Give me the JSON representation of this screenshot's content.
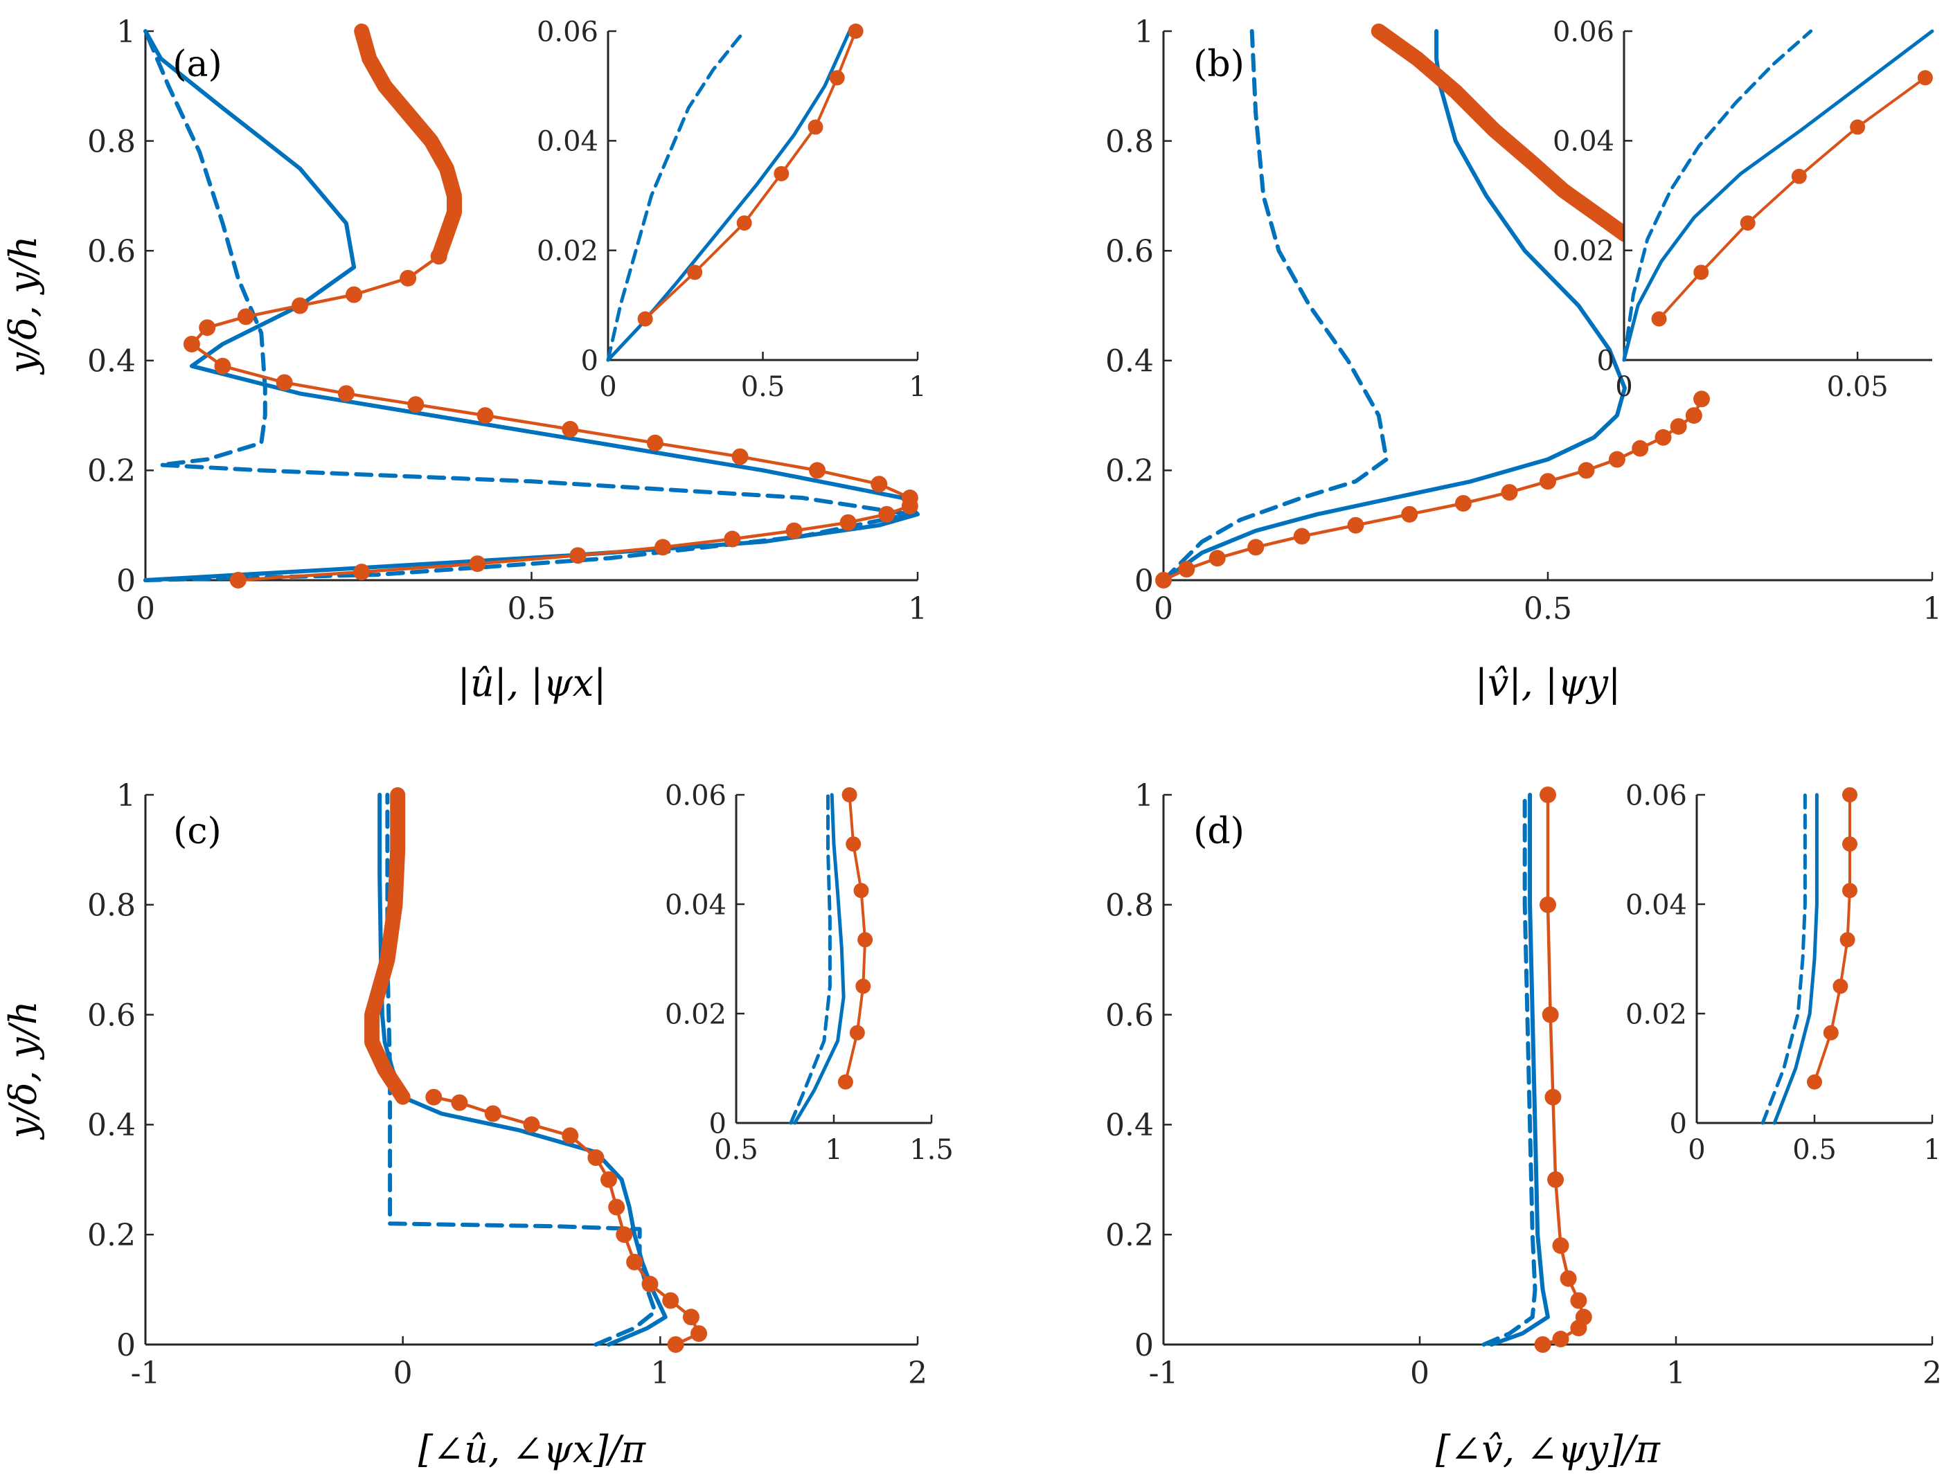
{
  "colors": {
    "blue": "#0072BD",
    "orange": "#D95319",
    "axis": "#262626"
  },
  "chart_data": [
    {
      "panel": "a",
      "label": "(a)",
      "type": "line",
      "xlabel": "|û|, |ψx|",
      "ylabel": "y/δ, y/h",
      "xlim": [
        0,
        1
      ],
      "ylim": [
        0,
        1
      ],
      "xticks": [
        "0",
        "0.5",
        "1"
      ],
      "yticks": [
        "0",
        "0.2",
        "0.4",
        "0.6",
        "0.8",
        "1"
      ],
      "series": [
        {
          "name": "solid",
          "style": "solid",
          "color": "blue",
          "x": [
            0,
            0.25,
            0.55,
            0.8,
            0.95,
            1.0,
            0.98,
            0.8,
            0.5,
            0.2,
            0.06,
            0.1,
            0.2,
            0.27,
            0.26,
            0.2,
            0.1,
            0.02,
            0
          ],
          "y": [
            0,
            0.02,
            0.045,
            0.07,
            0.1,
            0.12,
            0.15,
            0.2,
            0.27,
            0.34,
            0.39,
            0.43,
            0.5,
            0.57,
            0.65,
            0.75,
            0.86,
            0.95,
            1.0
          ]
        },
        {
          "name": "dashed",
          "style": "dashed",
          "color": "blue",
          "x": [
            0,
            0.3,
            0.6,
            0.85,
            0.99,
            0.85,
            0.5,
            0.15,
            0.02,
            0.08,
            0.15,
            0.155,
            0.155,
            0.15,
            0.12,
            0.1,
            0.07,
            0.03,
            0
          ],
          "y": [
            0,
            0.01,
            0.04,
            0.08,
            0.12,
            0.15,
            0.18,
            0.2,
            0.21,
            0.22,
            0.25,
            0.3,
            0.35,
            0.45,
            0.55,
            0.65,
            0.78,
            0.9,
            1.0
          ]
        },
        {
          "name": "line-dots",
          "style": "marker",
          "color": "orange",
          "x": [
            0.12,
            0.28,
            0.43,
            0.56,
            0.67,
            0.76,
            0.84,
            0.91,
            0.96,
            0.99,
            0.99,
            0.95,
            0.87,
            0.77,
            0.66,
            0.55,
            0.44,
            0.35,
            0.26,
            0.18,
            0.1,
            0.06,
            0.08,
            0.13,
            0.2,
            0.27,
            0.34,
            0.38
          ],
          "y": [
            0,
            0.015,
            0.03,
            0.045,
            0.06,
            0.075,
            0.09,
            0.105,
            0.12,
            0.135,
            0.15,
            0.175,
            0.2,
            0.225,
            0.25,
            0.275,
            0.3,
            0.32,
            0.34,
            0.36,
            0.39,
            0.43,
            0.46,
            0.48,
            0.5,
            0.52,
            0.55,
            0.59
          ]
        },
        {
          "name": "thick-upper",
          "style": "thick",
          "color": "orange",
          "x": [
            0.38,
            0.39,
            0.4,
            0.4,
            0.39,
            0.37,
            0.34,
            0.31,
            0.29,
            0.28
          ],
          "y": [
            0.59,
            0.63,
            0.67,
            0.7,
            0.75,
            0.8,
            0.85,
            0.9,
            0.95,
            1.0
          ]
        }
      ],
      "inset": {
        "xlim": [
          0,
          1
        ],
        "ylim": [
          0,
          0.06
        ],
        "xticks": [
          "0",
          "0.5",
          "1"
        ],
        "yticks": [
          "0",
          "0.02",
          "0.04",
          "0.06"
        ],
        "series": [
          {
            "style": "solid",
            "color": "blue",
            "x": [
              0,
              0.1,
              0.22,
              0.35,
              0.48,
              0.6,
              0.7,
              0.78
            ],
            "y": [
              0,
              0.006,
              0.014,
              0.023,
              0.032,
              0.041,
              0.05,
              0.06
            ]
          },
          {
            "style": "dashed",
            "color": "blue",
            "x": [
              0,
              0.04,
              0.09,
              0.14,
              0.2,
              0.26,
              0.34,
              0.44
            ],
            "y": [
              0,
              0.01,
              0.02,
              0.03,
              0.038,
              0.046,
              0.053,
              0.06
            ]
          },
          {
            "style": "marker",
            "color": "orange",
            "x": [
              0.12,
              0.28,
              0.44,
              0.56,
              0.67,
              0.74,
              0.8
            ],
            "y": [
              0.0075,
              0.016,
              0.025,
              0.034,
              0.0425,
              0.0515,
              0.06
            ]
          }
        ]
      }
    },
    {
      "panel": "b",
      "label": "(b)",
      "type": "line",
      "xlabel": "|v̂|, |ψy|",
      "ylabel": "",
      "xlim": [
        0,
        1
      ],
      "ylim": [
        0,
        1
      ],
      "xticks": [
        "0",
        "0.5",
        "1"
      ],
      "yticks": [
        "0",
        "0.2",
        "0.4",
        "0.6",
        "0.8",
        "1"
      ],
      "series": [
        {
          "name": "solid",
          "style": "solid",
          "color": "blue",
          "x": [
            0,
            0.05,
            0.12,
            0.2,
            0.3,
            0.4,
            0.5,
            0.56,
            0.59,
            0.6,
            0.58,
            0.54,
            0.47,
            0.42,
            0.38,
            0.36,
            0.355,
            0.355
          ],
          "y": [
            0,
            0.05,
            0.09,
            0.12,
            0.15,
            0.18,
            0.22,
            0.26,
            0.3,
            0.35,
            0.42,
            0.5,
            0.6,
            0.7,
            0.8,
            0.9,
            0.95,
            1.0
          ]
        },
        {
          "name": "dashed",
          "style": "dashed",
          "color": "blue",
          "x": [
            0,
            0.05,
            0.1,
            0.18,
            0.25,
            0.29,
            0.28,
            0.24,
            0.19,
            0.15,
            0.13,
            0.12,
            0.115
          ],
          "y": [
            0,
            0.07,
            0.11,
            0.15,
            0.18,
            0.22,
            0.3,
            0.4,
            0.5,
            0.6,
            0.7,
            0.85,
            1.0
          ]
        },
        {
          "name": "line-dots",
          "style": "marker",
          "color": "orange",
          "x": [
            0,
            0.03,
            0.07,
            0.12,
            0.18,
            0.25,
            0.32,
            0.39,
            0.45,
            0.5,
            0.55,
            0.59,
            0.62,
            0.65,
            0.67,
            0.69,
            0.7
          ],
          "y": [
            0,
            0.02,
            0.04,
            0.06,
            0.08,
            0.1,
            0.12,
            0.14,
            0.16,
            0.18,
            0.2,
            0.22,
            0.24,
            0.26,
            0.28,
            0.3,
            0.33
          ]
        },
        {
          "name": "thick-upper",
          "style": "thick",
          "color": "orange",
          "x": [
            0.28,
            0.33,
            0.38,
            0.43,
            0.48,
            0.52,
            0.57,
            0.6
          ],
          "y": [
            1.0,
            0.95,
            0.89,
            0.82,
            0.76,
            0.71,
            0.66,
            0.63
          ]
        }
      ],
      "inset": {
        "xlim": [
          0,
          0.066
        ],
        "ylim": [
          0,
          0.06
        ],
        "xticks": [
          "0",
          "0.05"
        ],
        "yticks": [
          "0",
          "0.02",
          "0.04",
          "0.06"
        ],
        "series": [
          {
            "style": "solid",
            "color": "blue",
            "x": [
              0,
              0.003,
              0.008,
              0.015,
              0.025,
              0.038,
              0.052,
              0.066
            ],
            "y": [
              0,
              0.01,
              0.018,
              0.026,
              0.034,
              0.042,
              0.051,
              0.06
            ]
          },
          {
            "style": "dashed",
            "color": "blue",
            "x": [
              0,
              0.002,
              0.005,
              0.01,
              0.016,
              0.024,
              0.032,
              0.04
            ],
            "y": [
              0,
              0.012,
              0.022,
              0.031,
              0.039,
              0.047,
              0.054,
              0.06
            ]
          },
          {
            "style": "marker",
            "color": "orange",
            "x": [
              0.0075,
              0.0165,
              0.0265,
              0.0375,
              0.05,
              0.0645
            ],
            "y": [
              0.0075,
              0.016,
              0.025,
              0.0335,
              0.0425,
              0.0515
            ]
          }
        ]
      }
    },
    {
      "panel": "c",
      "label": "(c)",
      "type": "line",
      "xlabel": "[∠û, ∠ψx]/π",
      "ylabel": "y/δ, y/h",
      "xlim": [
        -1,
        2
      ],
      "ylim": [
        0,
        1
      ],
      "xticks": [
        "-1",
        "0",
        "1",
        "2"
      ],
      "yticks": [
        "0",
        "0.2",
        "0.4",
        "0.6",
        "0.8",
        "1"
      ],
      "series": [
        {
          "name": "solid",
          "style": "solid",
          "color": "blue",
          "x": [
            0.8,
            0.95,
            1.02,
            0.97,
            0.93,
            0.9,
            0.88,
            0.85,
            0.75,
            0.45,
            0.15,
            0.0,
            -0.04,
            -0.07,
            -0.08,
            -0.085,
            -0.09,
            -0.09
          ],
          "y": [
            0,
            0.03,
            0.05,
            0.1,
            0.15,
            0.2,
            0.25,
            0.3,
            0.35,
            0.39,
            0.42,
            0.45,
            0.5,
            0.55,
            0.6,
            0.7,
            0.85,
            1.0
          ]
        },
        {
          "name": "dashed",
          "style": "dashed",
          "color": "blue",
          "x": [
            0.75,
            0.9,
            0.98,
            0.95,
            0.92,
            0.92,
            0.6,
            -0.05,
            -0.05,
            -0.05,
            -0.06,
            -0.06
          ],
          "y": [
            0,
            0.03,
            0.06,
            0.1,
            0.15,
            0.21,
            0.215,
            0.22,
            0.3,
            0.5,
            0.7,
            1.0
          ]
        },
        {
          "name": "line-dots",
          "style": "marker",
          "color": "orange",
          "x": [
            1.06,
            1.15,
            1.12,
            1.04,
            0.96,
            0.9,
            0.86,
            0.83,
            0.8,
            0.75,
            0.65,
            0.5,
            0.35,
            0.22,
            0.12
          ],
          "y": [
            0,
            0.02,
            0.05,
            0.08,
            0.11,
            0.15,
            0.2,
            0.25,
            0.3,
            0.34,
            0.38,
            0.4,
            0.42,
            0.44,
            0.45
          ]
        },
        {
          "name": "thick-upper",
          "style": "thick",
          "color": "orange",
          "x": [
            0.0,
            -0.07,
            -0.12,
            -0.12,
            -0.06,
            -0.03,
            -0.02,
            -0.02
          ],
          "y": [
            0.45,
            0.5,
            0.55,
            0.6,
            0.7,
            0.8,
            0.9,
            1.0
          ]
        }
      ],
      "inset": {
        "xlim": [
          0.5,
          1.5
        ],
        "ylim": [
          0,
          0.06
        ],
        "xticks": [
          "0.5",
          "1",
          "1.5"
        ],
        "yticks": [
          "0",
          "0.02",
          "0.04",
          "0.06"
        ],
        "series": [
          {
            "style": "solid",
            "color": "blue",
            "x": [
              0.8,
              0.9,
              1.02,
              1.05,
              1.04,
              1.02,
              1.0,
              0.99
            ],
            "y": [
              0,
              0.006,
              0.015,
              0.023,
              0.032,
              0.042,
              0.051,
              0.06
            ]
          },
          {
            "style": "dashed",
            "color": "blue",
            "x": [
              0.78,
              0.85,
              0.95,
              0.98,
              0.98,
              0.97,
              0.97
            ],
            "y": [
              0,
              0.006,
              0.015,
              0.025,
              0.037,
              0.05,
              0.06
            ]
          },
          {
            "style": "marker",
            "color": "orange",
            "x": [
              1.06,
              1.12,
              1.15,
              1.16,
              1.14,
              1.1,
              1.08
            ],
            "y": [
              0.0075,
              0.0165,
              0.025,
              0.0335,
              0.0425,
              0.051,
              0.06
            ]
          }
        ]
      }
    },
    {
      "panel": "d",
      "label": "(d)",
      "type": "line",
      "xlabel": "[∠v̂, ∠ψy]/π",
      "ylabel": "",
      "xlim": [
        -1,
        2
      ],
      "ylim": [
        0,
        1
      ],
      "xticks": [
        "-1",
        "0",
        "1",
        "2"
      ],
      "yticks": [
        "0",
        "0.2",
        "0.4",
        "0.6",
        "0.8",
        "1"
      ],
      "series": [
        {
          "name": "solid",
          "style": "solid",
          "color": "blue",
          "x": [
            0.28,
            0.4,
            0.5,
            0.48,
            0.46,
            0.45,
            0.44,
            0.43,
            0.43
          ],
          "y": [
            0,
            0.02,
            0.05,
            0.1,
            0.2,
            0.4,
            0.6,
            0.8,
            1.0
          ]
        },
        {
          "name": "dashed",
          "style": "dashed",
          "color": "blue",
          "x": [
            0.25,
            0.35,
            0.44,
            0.45,
            0.44,
            0.43,
            0.42,
            0.41,
            0.41
          ],
          "y": [
            0,
            0.02,
            0.05,
            0.1,
            0.2,
            0.4,
            0.6,
            0.8,
            1.0
          ]
        },
        {
          "name": "line-dots",
          "style": "marker",
          "color": "orange",
          "x": [
            0.48,
            0.55,
            0.62,
            0.64,
            0.62,
            0.58,
            0.55,
            0.53,
            0.52,
            0.51,
            0.5,
            0.5
          ],
          "y": [
            0,
            0.01,
            0.03,
            0.05,
            0.08,
            0.12,
            0.18,
            0.3,
            0.45,
            0.6,
            0.8,
            1.0
          ]
        }
      ],
      "inset": {
        "xlim": [
          0,
          1
        ],
        "ylim": [
          0,
          0.06
        ],
        "xticks": [
          "0",
          "0.5",
          "1"
        ],
        "yticks": [
          "0",
          "0.02",
          "0.04",
          "0.06"
        ],
        "series": [
          {
            "style": "solid",
            "color": "blue",
            "x": [
              0.33,
              0.42,
              0.48,
              0.5,
              0.51,
              0.51,
              0.51
            ],
            "y": [
              0,
              0.01,
              0.02,
              0.03,
              0.04,
              0.05,
              0.06
            ]
          },
          {
            "style": "dashed",
            "color": "blue",
            "x": [
              0.28,
              0.37,
              0.43,
              0.45,
              0.46,
              0.46,
              0.46
            ],
            "y": [
              0,
              0.01,
              0.02,
              0.03,
              0.04,
              0.05,
              0.06
            ]
          },
          {
            "style": "marker",
            "color": "orange",
            "x": [
              0.5,
              0.57,
              0.61,
              0.64,
              0.65,
              0.65,
              0.65
            ],
            "y": [
              0.0075,
              0.0165,
              0.025,
              0.0335,
              0.0425,
              0.051,
              0.06
            ]
          }
        ]
      }
    }
  ]
}
